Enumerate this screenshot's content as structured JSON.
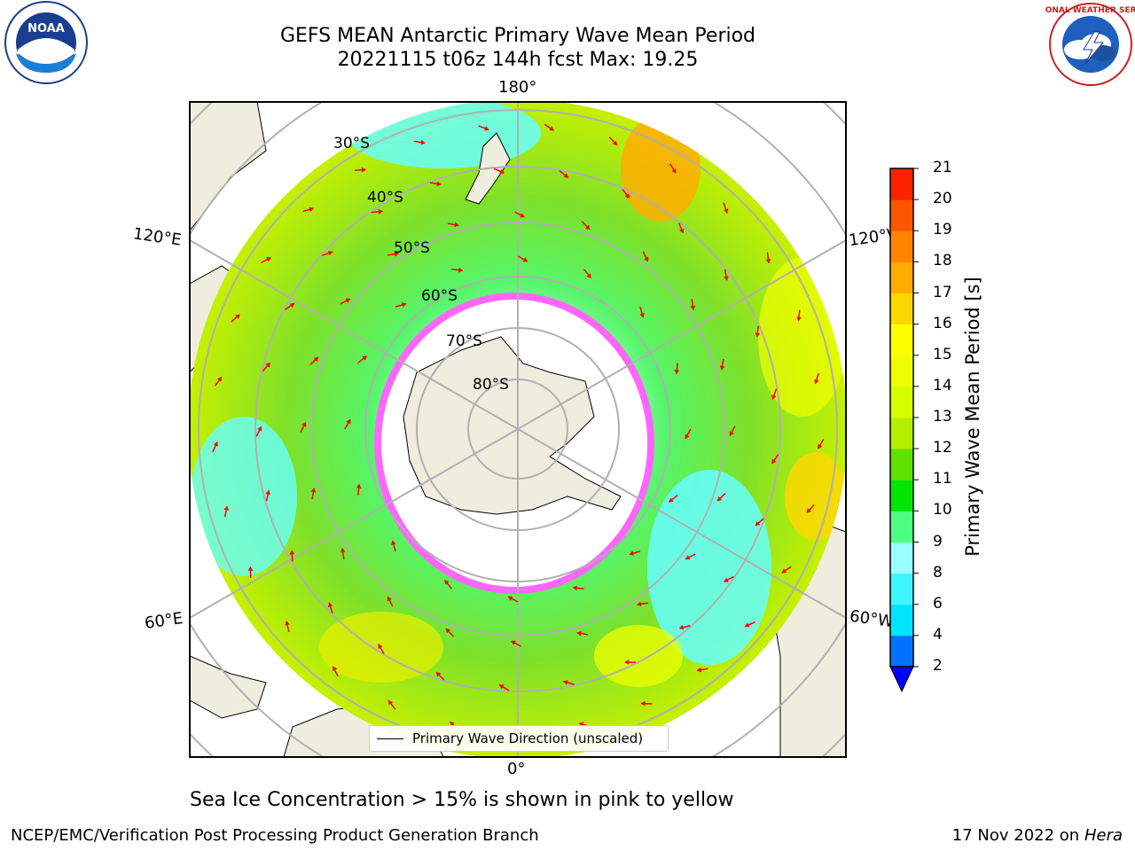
{
  "title": {
    "line1": "GEFS MEAN Antarctic Primary Wave Mean Period",
    "line2": "20221115 t06z 144h fcst   Max: 19.25"
  },
  "map": {
    "longitude_labels": [
      "180°",
      "0°",
      "120°E",
      "120°W",
      "60°E",
      "60°W"
    ],
    "latitude_labels": [
      "30°S",
      "40°S",
      "50°S",
      "60°S",
      "70°S",
      "80°S"
    ]
  },
  "colorbar": {
    "label": "Primary Wave Mean Period [s]",
    "ticks": [
      "2",
      "4",
      "6",
      "8",
      "9",
      "10",
      "11",
      "12",
      "13",
      "14",
      "15",
      "16",
      "17",
      "18",
      "19",
      "20",
      "21"
    ],
    "colors": [
      "#0072ff",
      "#00e5ff",
      "#3ff5ff",
      "#99ffff",
      "#4dff80",
      "#00e600",
      "#5ee000",
      "#b3f000",
      "#d6ff00",
      "#eeff00",
      "#ffff00",
      "#ffd700",
      "#ffad00",
      "#ff8400",
      "#ff5500",
      "#ff2200"
    ],
    "under_color": "#0000ff"
  },
  "legend": {
    "label": "Primary Wave Direction (unscaled)"
  },
  "subtitle": "Sea Ice Concentration > 15% is shown in pink to yellow",
  "footer": {
    "left": "NCEP/EMC/Verification Post Processing Product Generation Branch",
    "right_date": "17 Nov 2022 on",
    "right_host": "Hera"
  },
  "logos": {
    "noaa_text": "NOAA",
    "nws_text": "NATIONAL WEATHER SERVICE"
  },
  "colors": {
    "land": "#efedde",
    "arrow": "#ff0000",
    "grid": "#b0b0b0"
  }
}
